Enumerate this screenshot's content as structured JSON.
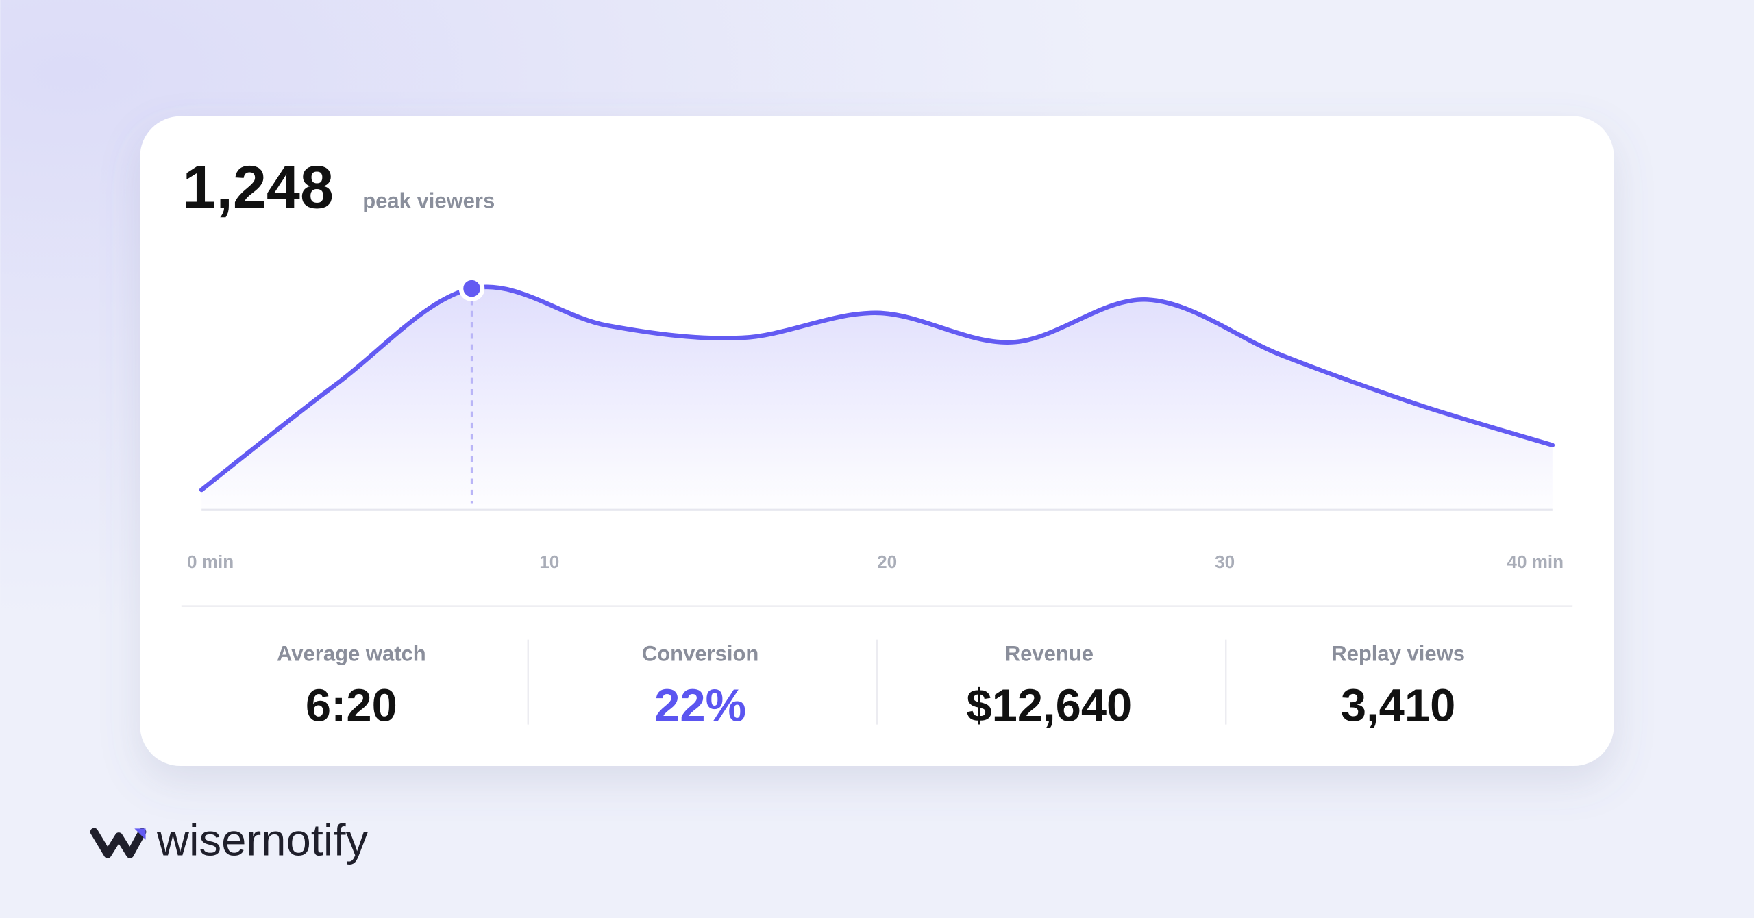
{
  "header": {
    "value": "1,248",
    "label": "peak viewers"
  },
  "chart_data": {
    "type": "line",
    "color": "#635bf2",
    "x": [
      0,
      4,
      8,
      12,
      16,
      20,
      24,
      28,
      32,
      36,
      40
    ],
    "values": [
      113,
      710,
      1248,
      1040,
      970,
      1110,
      945,
      1185,
      870,
      595,
      365
    ],
    "xlim": [
      0,
      40
    ],
    "xticks": [
      {
        "value": 0,
        "label": "0 min"
      },
      10,
      20,
      30,
      {
        "value": 40,
        "label": "40 min"
      }
    ],
    "ylim": [
      0,
      1500
    ],
    "area": true
  },
  "stats": [
    {
      "label": "Average watch",
      "value": "6:20",
      "color": "#111111"
    },
    {
      "label": "Conversion",
      "value": "22%",
      "color": "#5b55f0"
    },
    {
      "label": "Revenue",
      "value": "$12,640",
      "color": "#111111"
    },
    {
      "label": "Replay views",
      "value": "3,410",
      "color": "#111111"
    }
  ],
  "brand": "wisernotify"
}
